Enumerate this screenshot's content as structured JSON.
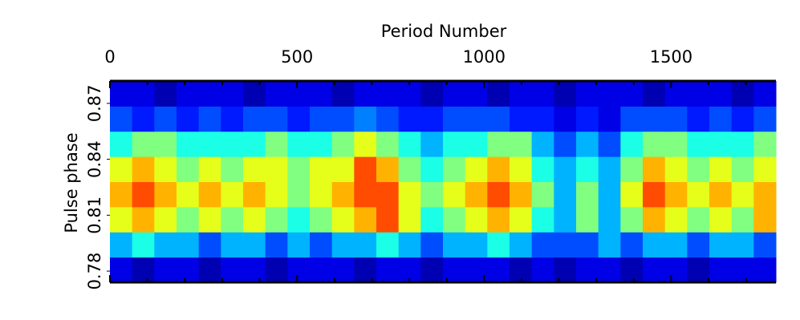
{
  "chart_data": {
    "type": "heatmap",
    "xlabel": "Period Number",
    "ylabel": "Pulse phase",
    "xlim": [
      0,
      1780
    ],
    "xticks": [
      0,
      500,
      1000,
      1500
    ],
    "xminorticks": [
      100,
      200,
      300,
      400,
      600,
      700,
      800,
      900,
      1100,
      1200,
      1300,
      1400,
      1600,
      1700
    ],
    "ylim": [
      0.774,
      0.882
    ],
    "yticks": [
      0.78,
      0.81,
      0.84,
      0.87
    ],
    "colormap": "jet",
    "background": "#00007f",
    "z": [
      [
        0.1,
        0.05,
        0.1,
        0.1,
        0.05,
        0.1,
        0.1,
        0.05,
        0.1,
        0.1,
        0.1,
        0.05,
        0.1,
        0.1,
        0.05,
        0.1,
        0.1,
        0.1,
        0.05,
        0.1,
        0.05,
        0.1,
        0.1,
        0.05,
        0.1,
        0.1,
        0.05,
        0.1,
        0.1,
        0.1
      ],
      [
        0.3,
        0.4,
        0.3,
        0.3,
        0.2,
        0.3,
        0.3,
        0.2,
        0.3,
        0.2,
        0.3,
        0.3,
        0.4,
        0.3,
        0.2,
        0.3,
        0.3,
        0.4,
        0.3,
        0.2,
        0.2,
        0.2,
        0.3,
        0.2,
        0.3,
        0.3,
        0.2,
        0.3,
        0.3,
        0.2
      ],
      [
        0.6,
        0.7,
        0.6,
        0.5,
        0.6,
        0.5,
        0.6,
        0.5,
        0.4,
        0.5,
        0.6,
        0.7,
        0.8,
        0.6,
        0.4,
        0.5,
        0.6,
        0.7,
        0.6,
        0.4,
        0.3,
        0.5,
        0.3,
        0.5,
        0.7,
        0.6,
        0.5,
        0.6,
        0.5,
        0.7
      ],
      [
        0.7,
        0.8,
        0.7,
        0.6,
        0.7,
        0.6,
        0.7,
        0.6,
        0.5,
        0.6,
        0.7,
        0.8,
        0.8,
        0.6,
        0.5,
        0.6,
        0.7,
        0.8,
        0.7,
        0.5,
        0.3,
        0.5,
        0.3,
        0.6,
        0.8,
        0.7,
        0.6,
        0.7,
        0.6,
        0.7
      ],
      [
        0.6,
        0.7,
        0.6,
        0.5,
        0.6,
        0.5,
        0.6,
        0.6,
        0.5,
        0.6,
        0.6,
        0.8,
        0.7,
        0.5,
        0.4,
        0.5,
        0.6,
        0.7,
        0.6,
        0.4,
        0.3,
        0.4,
        0.3,
        0.5,
        0.7,
        0.6,
        0.5,
        0.6,
        0.5,
        0.6
      ],
      [
        0.4,
        0.5,
        0.5,
        0.4,
        0.4,
        0.4,
        0.4,
        0.5,
        0.4,
        0.4,
        0.5,
        0.6,
        0.5,
        0.4,
        0.3,
        0.4,
        0.4,
        0.5,
        0.5,
        0.3,
        0.2,
        0.3,
        0.2,
        0.4,
        0.5,
        0.5,
        0.4,
        0.4,
        0.4,
        0.5
      ],
      [
        0.2,
        0.15,
        0.2,
        0.15,
        0.2,
        0.15,
        0.2,
        0.2,
        0.15,
        0.2,
        0.2,
        0.25,
        0.2,
        0.15,
        0.15,
        0.2,
        0.2,
        0.2,
        0.15,
        0.15,
        0.1,
        0.15,
        0.1,
        0.2,
        0.2,
        0.2,
        0.15,
        0.2,
        0.15,
        0.2
      ],
      [
        0.1,
        0.1,
        0.05,
        0.1,
        0.1,
        0.1,
        0.05,
        0.1,
        0.1,
        0.1,
        0.05,
        0.1,
        0.1,
        0.1,
        0.05,
        0.1,
        0.1,
        0.05,
        0.1,
        0.1,
        0.05,
        0.1,
        0.1,
        0.1,
        0.05,
        0.1,
        0.1,
        0.1,
        0.05,
        0.1
      ]
    ]
  }
}
